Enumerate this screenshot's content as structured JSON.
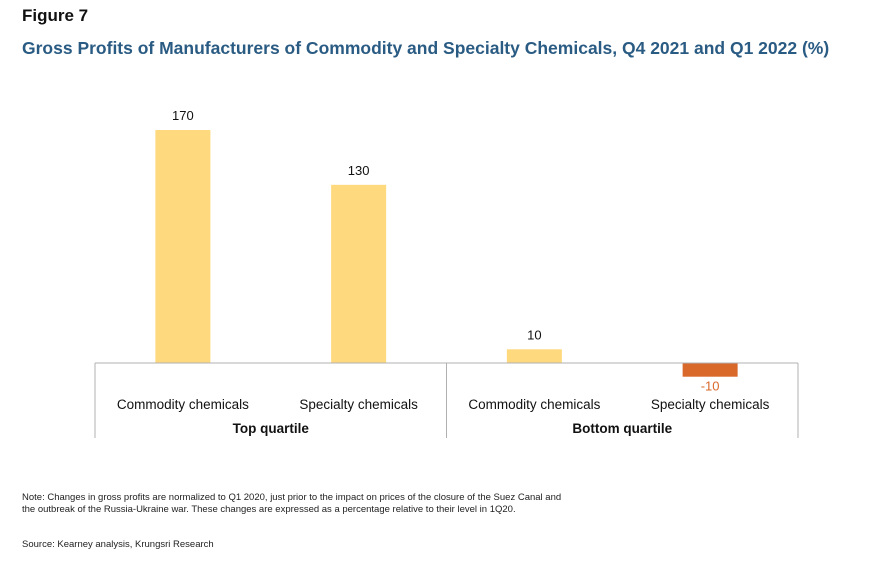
{
  "figure_label": "Figure 7",
  "chart_data": {
    "type": "bar",
    "title": "Gross Profits of Manufacturers of Commodity and Specialty Chemicals, Q4 2021 and Q1 2022 (%)",
    "xlabel": "",
    "ylabel": "",
    "groups": [
      {
        "name": "Top quartile",
        "categories": [
          "Commodity chemicals",
          "Specialty chemicals"
        ],
        "values": [
          170,
          130
        ]
      },
      {
        "name": "Bottom quartile",
        "categories": [
          "Commodity chemicals",
          "Specialty chemicals"
        ],
        "values": [
          10,
          -10
        ]
      }
    ],
    "ylim": [
      -10,
      170
    ],
    "grid": false,
    "legend": "none",
    "colors": {
      "positive": "#ffd97d",
      "negative": "#d8692b",
      "axis": "#b0b0b0",
      "label": "#111111"
    }
  },
  "footnote": {
    "note": "Note: Changes in gross profits are normalized to Q1 2020, just prior to the impact on prices of the closure of the Suez Canal and the outbreak of the Russia-Ukraine war. These changes are expressed as a percentage relative to their level in 1Q20.",
    "source": "Source: Kearney analysis, Krungsri Research"
  }
}
